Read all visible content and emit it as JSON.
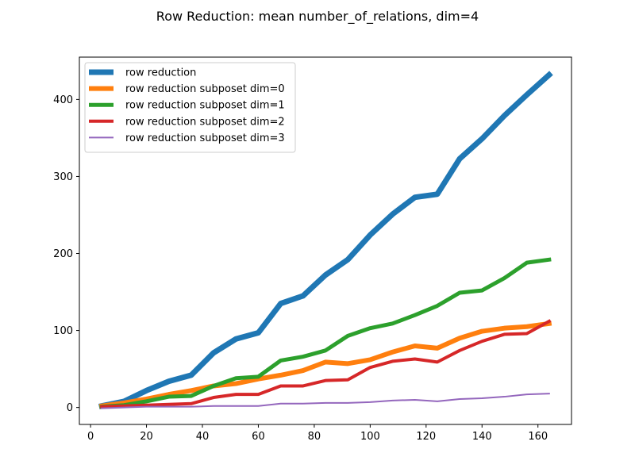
{
  "chart_data": {
    "type": "line",
    "title": "Row Reduction: mean number_of_relations, dim=4",
    "xlabel": "",
    "ylabel": "",
    "xlim": [
      -4,
      172
    ],
    "ylim": [
      -22,
      455
    ],
    "xticks": [
      0,
      20,
      40,
      60,
      80,
      100,
      120,
      140,
      160
    ],
    "yticks": [
      0,
      100,
      200,
      300,
      400
    ],
    "grid": false,
    "legend_position": "top-left",
    "x": [
      4,
      12,
      20,
      28,
      36,
      44,
      52,
      60,
      68,
      76,
      84,
      92,
      100,
      108,
      116,
      124,
      132,
      140,
      148,
      156,
      164
    ],
    "series": [
      {
        "name": "row reduction",
        "color": "#1f77b4",
        "line_width": 7,
        "values": [
          2,
          8,
          22,
          34,
          42,
          71,
          89,
          97,
          135,
          145,
          172,
          192,
          224,
          251,
          273,
          277,
          323,
          349,
          379,
          406,
          432
        ]
      },
      {
        "name": "row reduction subposet dim=0",
        "color": "#ff7f0e",
        "line_width": 6,
        "values": [
          2,
          6,
          11,
          17,
          22,
          28,
          31,
          37,
          42,
          48,
          59,
          57,
          62,
          72,
          80,
          77,
          90,
          99,
          103,
          105,
          109
        ]
      },
      {
        "name": "row reduction subposet dim=1",
        "color": "#2ca02c",
        "line_width": 5,
        "values": [
          1,
          3,
          8,
          14,
          15,
          28,
          38,
          40,
          61,
          66,
          74,
          93,
          103,
          109,
          120,
          132,
          149,
          152,
          168,
          188,
          192
        ]
      },
      {
        "name": "row reduction subposet dim=2",
        "color": "#d62728",
        "line_width": 4,
        "values": [
          1,
          2,
          3,
          4,
          5,
          13,
          17,
          17,
          28,
          28,
          35,
          36,
          52,
          60,
          63,
          59,
          74,
          86,
          95,
          96,
          112
        ]
      },
      {
        "name": "row reduction subposet dim=3",
        "color": "#9467bd",
        "line_width": 2,
        "values": [
          -1,
          0,
          1,
          1,
          1,
          2,
          2,
          2,
          5,
          5,
          6,
          6,
          7,
          9,
          10,
          8,
          11,
          12,
          14,
          17,
          18
        ]
      }
    ]
  }
}
